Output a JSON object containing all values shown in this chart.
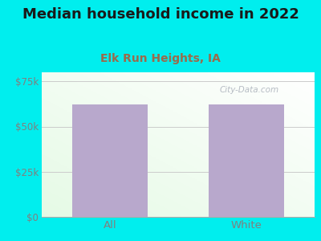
{
  "title": "Median household income in 2022",
  "subtitle": "Elk Run Heights, IA",
  "categories": [
    "All",
    "White"
  ],
  "values": [
    62000,
    62000
  ],
  "bar_color": "#b8a8cc",
  "ylim": [
    0,
    80000
  ],
  "yticks": [
    0,
    25000,
    50000,
    75000
  ],
  "ytick_labels": [
    "$0",
    "$25k",
    "$50k",
    "$75k"
  ],
  "background_outer": "#00EEEE",
  "title_fontsize": 13,
  "subtitle_fontsize": 10,
  "subtitle_color": "#9b6a4a",
  "tick_color": "#808080",
  "title_color": "#1a1a1a",
  "watermark_text": "City-Data.com",
  "watermark_color": "#aab0ba",
  "bar_value": 62000,
  "x_positions": [
    0.5,
    1.5
  ],
  "bar_width": 0.55,
  "xlim": [
    0.0,
    2.0
  ]
}
